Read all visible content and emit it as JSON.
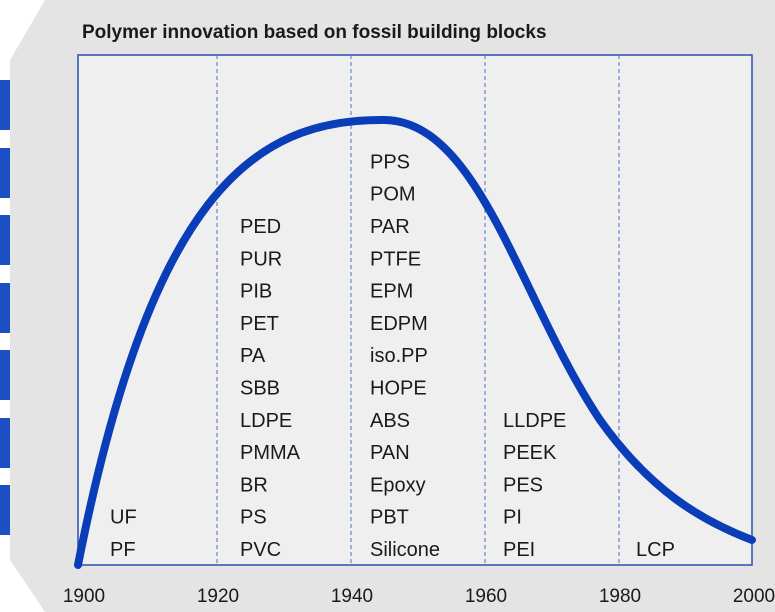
{
  "title": "Polymer innovation based on fossil building blocks",
  "x_labels": [
    "1900",
    "1920",
    "1940",
    "1960",
    "1980",
    "2000"
  ],
  "columns": [
    [
      "UF",
      "PF"
    ],
    [
      "PED",
      "PUR",
      "PIB",
      "PET",
      "PA",
      "SBB",
      "LDPE",
      "PMMA",
      "BR",
      "PS",
      "PVC"
    ],
    [
      "PPS",
      "POM",
      "PAR",
      "PTFE",
      "EPM",
      "EDPM",
      "iso.PP",
      "HOPE",
      "ABS",
      "PAN",
      "Epoxy",
      "PBT",
      "Silicone"
    ],
    [
      "LLDPE",
      "PEEK",
      "PES",
      "PI",
      "PEI"
    ],
    [
      "LCP"
    ]
  ]
}
